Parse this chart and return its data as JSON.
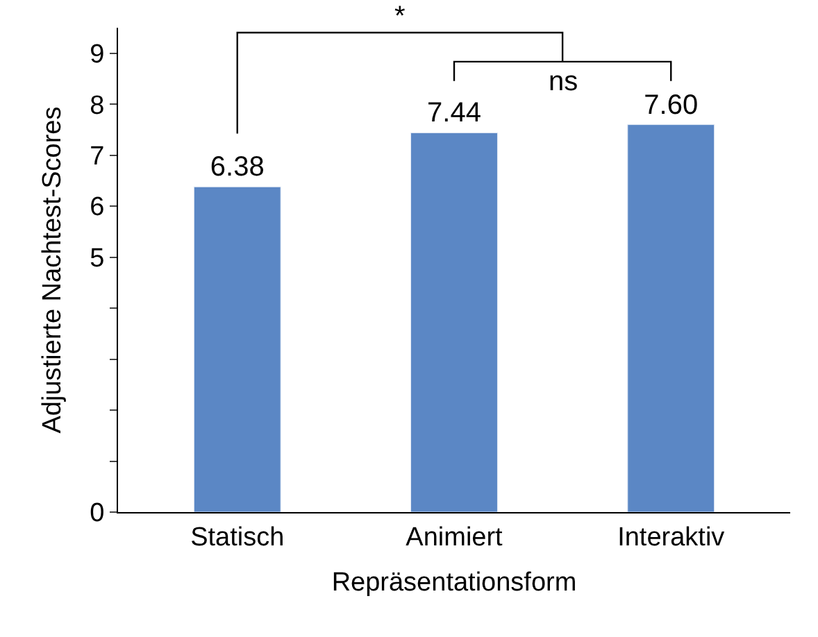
{
  "chart_data": {
    "type": "bar",
    "xlabel": "Repräsentationsform",
    "ylabel": "Adjustierte Nachtest-Scores",
    "categories": [
      "Statisch",
      "Animiert",
      "Interaktiv"
    ],
    "values": [
      6.38,
      7.44,
      7.6
    ],
    "value_labels": [
      "6.38",
      "7.44",
      "7.60"
    ],
    "color": "#5b87c5",
    "ylim": [
      0,
      9.5
    ],
    "yticks": [
      0,
      {
        "value": 1,
        "label": null
      },
      {
        "value": 2,
        "label": null
      },
      {
        "value": 3,
        "label": null
      },
      {
        "value": 4,
        "label": null
      },
      5,
      6,
      7,
      8,
      9
    ],
    "legend": false,
    "annotations": [
      "*",
      "ns"
    ]
  }
}
